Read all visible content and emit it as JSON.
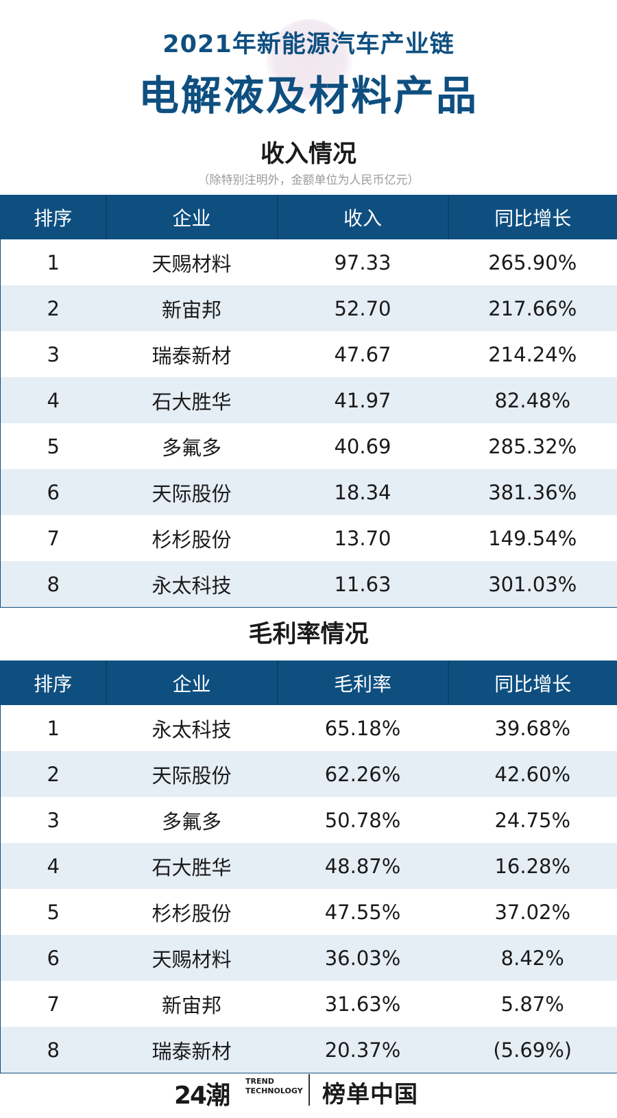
{
  "header": {
    "line1": "2021年新能源汽车产业链",
    "line2": "电解液及材料产品"
  },
  "revenue": {
    "section_title": "收入情况",
    "note": "（除特别注明外，金额单位为人民币亿元）",
    "columns": [
      "排序",
      "企业",
      "收入",
      "同比增长"
    ],
    "rows": [
      [
        "1",
        "天赐材料",
        "97.33",
        "265.90%"
      ],
      [
        "2",
        "新宙邦",
        "52.70",
        "217.66%"
      ],
      [
        "3",
        "瑞泰新材",
        "47.67",
        "214.24%"
      ],
      [
        "4",
        "石大胜华",
        "41.97",
        "82.48%"
      ],
      [
        "5",
        "多氟多",
        "40.69",
        "285.32%"
      ],
      [
        "6",
        "天际股份",
        "18.34",
        "381.36%"
      ],
      [
        "7",
        "杉杉股份",
        "13.70",
        "149.54%"
      ],
      [
        "8",
        "永太科技",
        "11.63",
        "301.03%"
      ]
    ]
  },
  "margin": {
    "section_title": "毛利率情况",
    "columns": [
      "排序",
      "企业",
      "毛利率",
      "同比增长"
    ],
    "rows": [
      [
        "1",
        "永太科技",
        "65.18%",
        "39.68%"
      ],
      [
        "2",
        "天际股份",
        "62.26%",
        "42.60%"
      ],
      [
        "3",
        "多氟多",
        "50.78%",
        "24.75%"
      ],
      [
        "4",
        "石大胜华",
        "48.87%",
        "16.28%"
      ],
      [
        "5",
        "杉杉股份",
        "47.55%",
        "37.02%"
      ],
      [
        "6",
        "天赐材料",
        "36.03%",
        "8.42%"
      ],
      [
        "7",
        "新宙邦",
        "31.63%",
        "5.87%"
      ],
      [
        "8",
        "瑞泰新材",
        "20.37%",
        "(5.69%)"
      ]
    ]
  },
  "footer": {
    "logo_left": "24潮",
    "logo_trend_line1": "TREND",
    "logo_trend_line2": "TECHNOLOGY",
    "logo_right": "榜单中国"
  },
  "colors": {
    "header_blue": "#0e4f80",
    "row_stripe": "#e5edf5",
    "negative_red": "#e02020"
  },
  "chart_data": [
    {
      "type": "table",
      "title": "收入情况",
      "columns": [
        "排序",
        "企业",
        "收入",
        "同比增长"
      ],
      "rows": [
        [
          1,
          "天赐材料",
          97.33,
          "265.90%"
        ],
        [
          2,
          "新宙邦",
          52.7,
          "217.66%"
        ],
        [
          3,
          "瑞泰新材",
          47.67,
          "214.24%"
        ],
        [
          4,
          "石大胜华",
          41.97,
          "82.48%"
        ],
        [
          5,
          "多氟多",
          40.69,
          "285.32%"
        ],
        [
          6,
          "天际股份",
          18.34,
          "381.36%"
        ],
        [
          7,
          "杉杉股份",
          13.7,
          "149.54%"
        ],
        [
          8,
          "永太科技",
          11.63,
          "301.03%"
        ]
      ]
    },
    {
      "type": "table",
      "title": "毛利率情况",
      "columns": [
        "排序",
        "企业",
        "毛利率",
        "同比增长"
      ],
      "rows": [
        [
          1,
          "永太科技",
          "65.18%",
          "39.68%"
        ],
        [
          2,
          "天际股份",
          "62.26%",
          "42.60%"
        ],
        [
          3,
          "多氟多",
          "50.78%",
          "24.75%"
        ],
        [
          4,
          "石大胜华",
          "48.87%",
          "16.28%"
        ],
        [
          5,
          "杉杉股份",
          "47.55%",
          "37.02%"
        ],
        [
          6,
          "天赐材料",
          "36.03%",
          "8.42%"
        ],
        [
          7,
          "新宙邦",
          "31.63%",
          "5.87%"
        ],
        [
          8,
          "瑞泰新材",
          "20.37%",
          "(5.69%)"
        ]
      ]
    }
  ]
}
